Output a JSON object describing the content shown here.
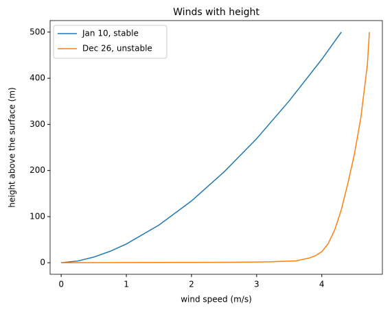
{
  "chart_data": {
    "type": "line",
    "title": "Winds with height",
    "xlabel": "wind speed (m/s)",
    "ylabel": "height above the surface (m)",
    "series": [
      {
        "name": "Jan 10, stable",
        "color": "#1f77b4",
        "x": [
          0,
          0.25,
          0.5,
          0.75,
          1,
          1.5,
          2,
          2.5,
          3,
          3.5,
          4,
          4.3
        ],
        "values": [
          0,
          3.7,
          12.3,
          24.8,
          40.7,
          81.7,
          134,
          197,
          269,
          351,
          441,
          500
        ]
      },
      {
        "name": "Dec 26, unstable",
        "color": "#ff7f0e",
        "x": [
          0,
          0.5,
          1,
          1.5,
          2,
          2.5,
          3,
          3.2,
          3.4,
          3.6,
          3.8,
          3.9,
          4.0,
          4.1,
          4.2,
          4.3,
          4.4,
          4.5,
          4.6,
          4.7,
          4.73
        ],
        "values": [
          0,
          0.3,
          0.5,
          0.7,
          0.9,
          1.1,
          1.5,
          2,
          3,
          4,
          10,
          15,
          24,
          42,
          72,
          115,
          172,
          235,
          315,
          430,
          500
        ]
      }
    ],
    "xlim": [
      -0.17,
      4.93
    ],
    "ylim": [
      -25,
      525
    ],
    "xticks": [
      0,
      1,
      2,
      3,
      4
    ],
    "yticks": [
      0,
      100,
      200,
      300,
      400,
      500
    ],
    "legend": "upper left"
  }
}
